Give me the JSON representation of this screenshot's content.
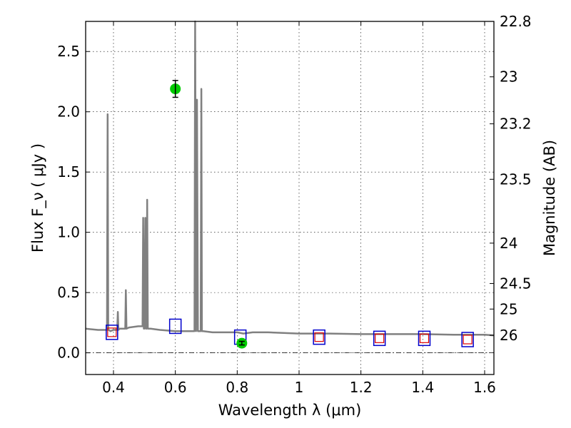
{
  "chart_data": {
    "type": "line",
    "xlabel": "Wavelength  λ (μm)",
    "ylabel": "Flux  F_ν  ( μJy )",
    "ylabel_right": "Magnitude (AB)",
    "xlim": [
      0.31,
      1.63
    ],
    "ylim": [
      -0.18,
      2.75
    ],
    "grid": true,
    "x_ticks": [
      0.4,
      0.6,
      0.8,
      1.0,
      1.2,
      1.4,
      1.6
    ],
    "x_tick_labels": [
      "0.4",
      "0.6",
      "0.8",
      "1",
      "1.2",
      "1.4",
      "1.6"
    ],
    "y_ticks": [
      0.0,
      0.5,
      1.0,
      1.5,
      2.0,
      2.5
    ],
    "y_tick_labels": [
      "0.0",
      "0.5",
      "1.0",
      "1.5",
      "2.0",
      "2.5"
    ],
    "right_ticks": [
      {
        "label": "22.8",
        "flux": 2.75
      },
      {
        "label": "23",
        "flux": 2.29
      },
      {
        "label": "23.2",
        "flux": 1.9
      },
      {
        "label": "23.5",
        "flux": 1.44
      },
      {
        "label": "24",
        "flux": 0.91
      },
      {
        "label": "24.5",
        "flux": 0.575
      },
      {
        "label": "25",
        "flux": 0.363
      },
      {
        "label": "26",
        "flux": 0.145
      }
    ],
    "colors": {
      "model": "#808080",
      "observed": "#00cc00",
      "model_box": "#0000cc",
      "model_inner": "#dd0000"
    },
    "series": [
      {
        "style": "model-spectrum",
        "x": [
          0.31,
          0.35,
          0.379,
          0.381,
          0.383,
          0.385,
          0.39,
          0.4,
          0.412,
          0.414,
          0.416,
          0.42,
          0.43,
          0.438,
          0.44,
          0.442,
          0.45,
          0.48,
          0.494,
          0.496,
          0.498,
          0.5,
          0.503,
          0.505,
          0.507,
          0.509,
          0.511,
          0.513,
          0.52,
          0.55,
          0.6,
          0.65,
          0.662,
          0.664,
          0.667,
          0.67,
          0.673,
          0.677,
          0.682,
          0.684,
          0.686,
          0.69,
          0.72,
          0.78,
          0.8,
          0.82,
          0.85,
          0.9,
          1.0,
          1.1,
          1.2,
          1.3,
          1.4,
          1.5,
          1.6,
          1.63
        ],
        "y": [
          0.2,
          0.19,
          0.19,
          1.98,
          0.19,
          0.19,
          0.18,
          0.19,
          0.19,
          0.34,
          0.19,
          0.2,
          0.2,
          0.2,
          0.52,
          0.2,
          0.21,
          0.22,
          0.22,
          1.12,
          0.2,
          0.2,
          1.12,
          0.2,
          0.2,
          1.27,
          0.2,
          0.2,
          0.2,
          0.19,
          0.18,
          0.18,
          0.18,
          2.75,
          0.18,
          2.1,
          0.18,
          0.18,
          0.18,
          2.19,
          0.18,
          0.18,
          0.17,
          0.17,
          0.17,
          0.16,
          0.17,
          0.17,
          0.16,
          0.16,
          0.155,
          0.155,
          0.155,
          0.15,
          0.15,
          0.145
        ]
      },
      {
        "style": "observed",
        "x": [
          0.6,
          0.815
        ],
        "y": [
          2.19,
          0.08
        ],
        "yerr": [
          0.07,
          0.015
        ]
      },
      {
        "style": "model-photometry",
        "x": [
          0.395,
          0.6,
          0.81,
          1.065,
          1.26,
          1.405,
          1.545
        ],
        "y": [
          0.17,
          0.22,
          0.13,
          0.13,
          0.12,
          0.12,
          0.11
        ],
        "inner": [
          true,
          false,
          false,
          true,
          true,
          true,
          true
        ]
      }
    ]
  }
}
